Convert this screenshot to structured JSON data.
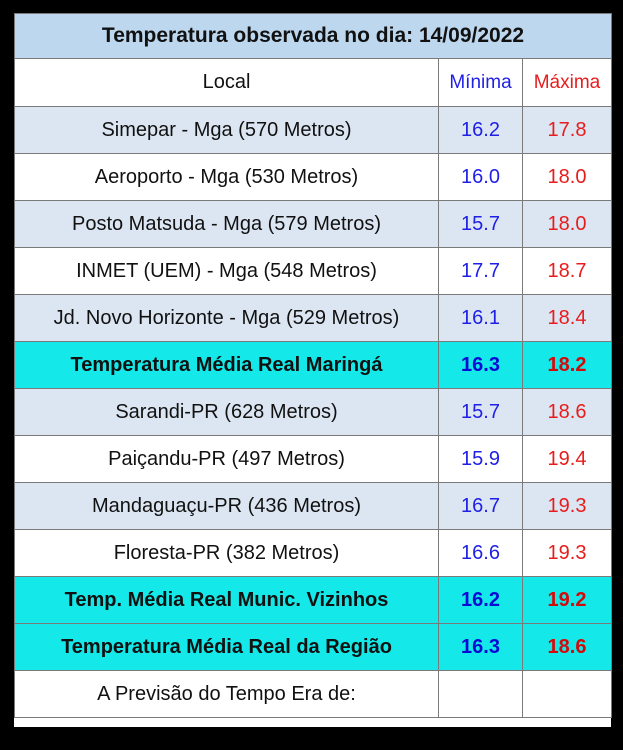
{
  "title": "Temperatura observada no dia: 14/09/2022",
  "headers": {
    "local": "Local",
    "min": "Mínima",
    "max": "Máxima"
  },
  "rows": [
    {
      "local": "Simepar - Mga  (570 Metros)",
      "min": "16.2",
      "max": "17.8"
    },
    {
      "local": "Aeroporto - Mga (530 Metros)",
      "min": "16.0",
      "max": "18.0"
    },
    {
      "local": "Posto Matsuda - Mga (579 Metros)",
      "min": "15.7",
      "max": "18.0"
    },
    {
      "local": "INMET (UEM) - Mga  (548 Metros)",
      "min": "17.7",
      "max": "18.7"
    },
    {
      "local": "Jd. Novo Horizonte - Mga (529 Metros)",
      "min": "16.1",
      "max": "18.4"
    },
    {
      "local": "Temperatura Média Real Maringá",
      "min": "16.3",
      "max": "18.2"
    },
    {
      "local": "Sarandi-PR  (628 Metros)",
      "min": "15.7",
      "max": "18.6"
    },
    {
      "local": "Paiçandu-PR (497 Metros)",
      "min": "15.9",
      "max": "19.4"
    },
    {
      "local": "Mandaguaçu-PR (436 Metros)",
      "min": "16.7",
      "max": "19.3"
    },
    {
      "local": "Floresta-PR (382 Metros)",
      "min": "16.6",
      "max": "19.3"
    },
    {
      "local": "Temp. Média Real Munic. Vizinhos",
      "min": "16.2",
      "max": "19.2"
    },
    {
      "local": "Temperatura Média Real da Região",
      "min": "16.3",
      "max": "18.6"
    }
  ],
  "forecast": {
    "label": "A Previsão do Tempo Era de:",
    "min": "",
    "max": ""
  },
  "colors": {
    "title_bg": "#bdd7ee",
    "alt_row_bg": "#dce6f2",
    "average_row_bg": "#14e8e8",
    "min_text": "#1f1fe6",
    "max_text": "#e81c1c"
  }
}
